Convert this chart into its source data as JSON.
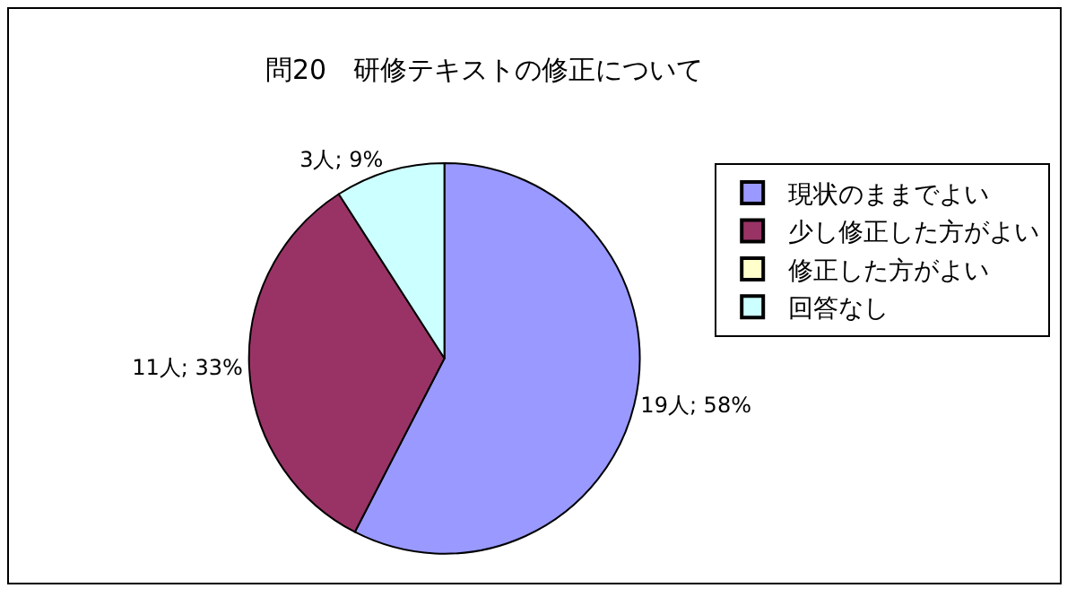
{
  "chart_data": {
    "type": "pie",
    "title": "問20　研修テキストの修正について",
    "categories": [
      "現状のままでよい",
      "少し修正した方がよい",
      "修正した方がよい",
      "回答なし"
    ],
    "values": [
      19,
      11,
      0,
      3
    ],
    "colors": [
      "#9999ff",
      "#993366",
      "#ffffcc",
      "#ccffff"
    ],
    "value_labels": [
      "19人; 58%",
      "11人; 33%",
      null,
      "3人; 9%"
    ],
    "legend": "right"
  }
}
